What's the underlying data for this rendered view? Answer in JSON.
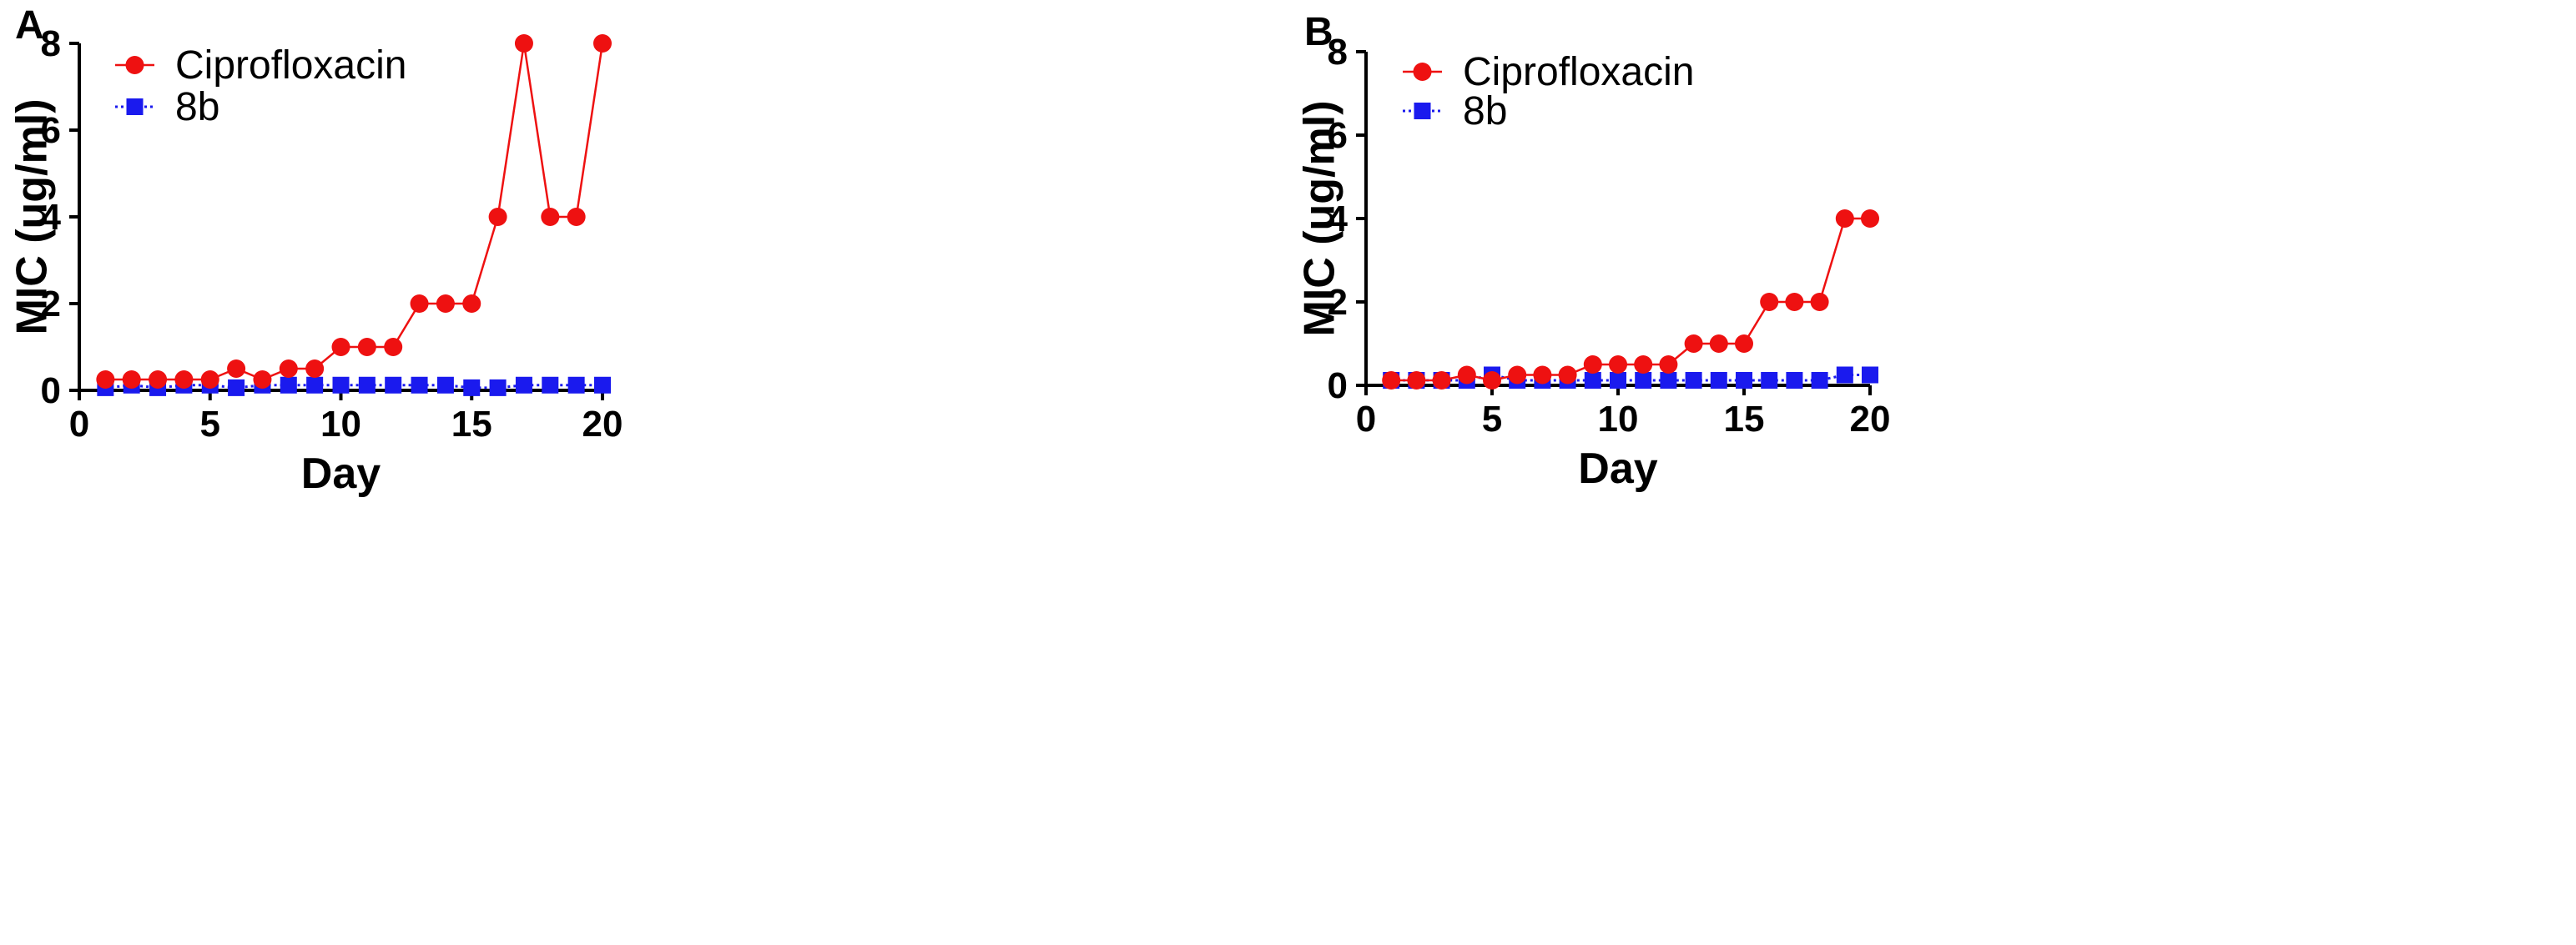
{
  "chart_data": [
    {
      "type": "line",
      "panel_label": "A",
      "xlabel": "Day",
      "ylabel": "MIC (ug/ml)",
      "xlim": [
        0,
        20
      ],
      "ylim": [
        0,
        8
      ],
      "xticks": [
        0,
        5,
        10,
        15,
        20
      ],
      "yticks": [
        0,
        2,
        4,
        6,
        8
      ],
      "grid": false,
      "legend_position": "top-left",
      "x": [
        1,
        2,
        3,
        4,
        5,
        6,
        7,
        8,
        9,
        10,
        11,
        12,
        13,
        14,
        15,
        16,
        17,
        18,
        19,
        20
      ],
      "series": [
        {
          "name": "Ciprofloxacin",
          "color": "#ee1111",
          "marker": "circle",
          "line": "solid",
          "values": [
            0.25,
            0.25,
            0.25,
            0.25,
            0.25,
            0.5,
            0.25,
            0.5,
            0.5,
            1,
            1,
            1,
            2,
            2,
            2,
            4,
            8,
            4,
            4,
            8
          ]
        },
        {
          "name": "8b",
          "color": "#1a1aee",
          "marker": "square",
          "line": "dotted",
          "values": [
            0.06,
            0.12,
            0.06,
            0.12,
            0.12,
            0.06,
            0.12,
            0.12,
            0.12,
            0.12,
            0.12,
            0.12,
            0.12,
            0.12,
            0.06,
            0.06,
            0.12,
            0.12,
            0.12,
            0.12
          ]
        }
      ]
    },
    {
      "type": "line",
      "panel_label": "B",
      "xlabel": "Day",
      "ylabel": "MIC (ug/ml)",
      "xlim": [
        0,
        20
      ],
      "ylim": [
        0,
        8
      ],
      "xticks": [
        0,
        5,
        10,
        15,
        20
      ],
      "yticks": [
        0,
        2,
        4,
        6,
        8
      ],
      "grid": false,
      "legend_position": "top-left",
      "x": [
        1,
        2,
        3,
        4,
        5,
        6,
        7,
        8,
        9,
        10,
        11,
        12,
        13,
        14,
        15,
        16,
        17,
        18,
        19,
        20
      ],
      "series": [
        {
          "name": "Ciprofloxacin",
          "color": "#ee1111",
          "marker": "circle",
          "line": "solid",
          "values": [
            0.12,
            0.12,
            0.12,
            0.25,
            0.12,
            0.25,
            0.25,
            0.25,
            0.5,
            0.5,
            0.5,
            0.5,
            1,
            1,
            1,
            2,
            2,
            2,
            4,
            4
          ]
        },
        {
          "name": "8b",
          "color": "#1a1aee",
          "marker": "square",
          "line": "dotted",
          "values": [
            0.12,
            0.12,
            0.12,
            0.12,
            0.25,
            0.12,
            0.12,
            0.12,
            0.12,
            0.12,
            0.12,
            0.12,
            0.12,
            0.12,
            0.12,
            0.12,
            0.12,
            0.12,
            0.25,
            0.25
          ]
        }
      ]
    }
  ]
}
